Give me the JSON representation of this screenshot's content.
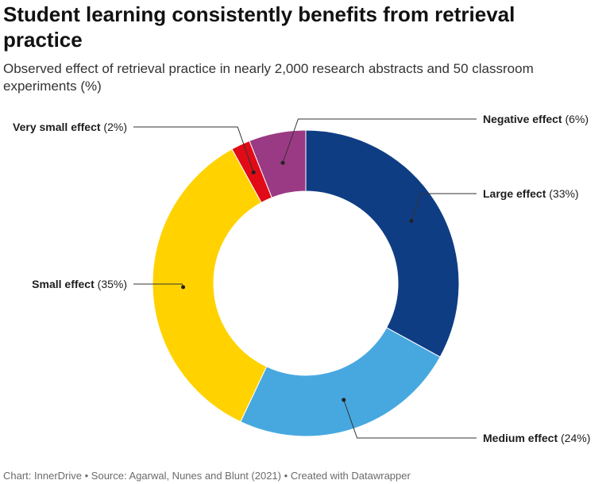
{
  "title": "Student learning consistently benefits from retrieval practice",
  "subtitle": "Observed effect of retrieval practice in nearly 2,000 research abstracts and 50 classroom experiments (%)",
  "footer": {
    "chart_by": "Chart: InnerDrive",
    "source": "Source: Agarwal, Nunes and Blunt (2021)",
    "created": "Created with Datawrapper",
    "separator": "•"
  },
  "chart_data": {
    "type": "pie",
    "variant": "donut",
    "start": "12 o'clock, clockwise",
    "slices": [
      {
        "name": "Large effect",
        "value": 33,
        "color": "#0f3d84"
      },
      {
        "name": "Medium effect",
        "value": 24,
        "color": "#47a8e0"
      },
      {
        "name": "Small effect",
        "value": 35,
        "color": "#ffd200"
      },
      {
        "name": "Very small effect",
        "value": 2,
        "color": "#e00b17"
      },
      {
        "name": "Negative effect",
        "value": 6,
        "color": "#9b3a84"
      }
    ]
  }
}
